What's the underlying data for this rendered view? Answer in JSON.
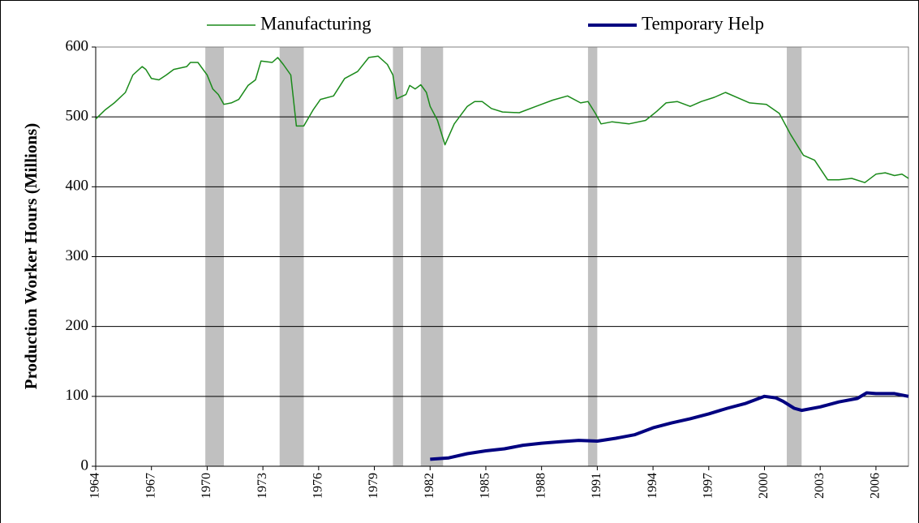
{
  "chart_data": {
    "type": "line",
    "y_label": "Production Worker Hours (Millions)",
    "xlim": [
      1964,
      2007.75
    ],
    "xticks": [
      1964,
      1967,
      1970,
      1973,
      1976,
      1979,
      1982,
      1985,
      1988,
      1991,
      1994,
      1997,
      2000,
      2003,
      2006
    ],
    "ylim": [
      0,
      600
    ],
    "yticks": [
      0,
      100,
      200,
      300,
      400,
      500,
      600
    ],
    "grid": true,
    "recessions": [
      [
        1969.9,
        1970.9
      ],
      [
        1973.9,
        1975.2
      ],
      [
        1980.0,
        1980.55
      ],
      [
        1981.5,
        1982.7
      ],
      [
        1990.5,
        1991.0
      ],
      [
        2001.2,
        2002.0
      ]
    ],
    "recession_color": "#c0c0c0",
    "series": [
      {
        "name": "Manufacturing",
        "color": "#1a8a1a",
        "width": 1.5,
        "x": [
          1964.0,
          1964.5,
          1965.0,
          1965.6,
          1966.0,
          1966.5,
          1966.7,
          1967.0,
          1967.4,
          1967.8,
          1968.2,
          1968.9,
          1969.1,
          1969.5,
          1970.0,
          1970.3,
          1970.6,
          1970.9,
          1971.3,
          1971.7,
          1972.2,
          1972.6,
          1972.9,
          1973.5,
          1973.8,
          1974.1,
          1974.5,
          1974.8,
          1975.2,
          1975.7,
          1976.1,
          1976.8,
          1977.4,
          1978.1,
          1978.7,
          1979.2,
          1979.7,
          1980.0,
          1980.2,
          1980.7,
          1980.9,
          1981.2,
          1981.5,
          1981.8,
          1982.0,
          1982.4,
          1982.8,
          1983.3,
          1984.0,
          1984.4,
          1984.8,
          1985.3,
          1985.9,
          1986.8,
          1987.7,
          1988.6,
          1989.4,
          1990.1,
          1990.5,
          1990.9,
          1991.2,
          1991.8,
          1992.7,
          1993.6,
          1994.2,
          1994.7,
          1995.3,
          1996.0,
          1996.6,
          1997.3,
          1997.9,
          1998.6,
          1999.2,
          2000.1,
          2000.8,
          2001.4,
          2002.1,
          2002.7,
          2003.4,
          2004.0,
          2004.7,
          2005.4,
          2006.0,
          2006.5,
          2007.0,
          2007.4,
          2007.75
        ],
        "values": [
          497,
          510,
          520,
          535,
          560,
          572,
          568,
          555,
          553,
          560,
          568,
          572,
          578,
          578,
          560,
          540,
          532,
          518,
          520,
          525,
          545,
          553,
          580,
          578,
          585,
          575,
          560,
          487,
          487,
          510,
          525,
          530,
          555,
          565,
          585,
          587,
          575,
          560,
          526,
          532,
          545,
          540,
          546,
          535,
          515,
          495,
          460,
          490,
          515,
          522,
          522,
          512,
          507,
          506,
          515,
          524,
          530,
          520,
          522,
          505,
          490,
          493,
          490,
          495,
          508,
          520,
          522,
          515,
          522,
          528,
          535,
          527,
          520,
          518,
          505,
          475,
          445,
          438,
          410,
          410,
          412,
          406,
          418,
          420,
          416,
          418,
          412
        ]
      },
      {
        "name": "Temporary Help",
        "color": "#000080",
        "width": 4,
        "x": [
          1982.0,
          1983.0,
          1984.0,
          1985.0,
          1986.0,
          1987.0,
          1988.0,
          1989.0,
          1990.0,
          1991.0,
          1992.0,
          1993.0,
          1994.0,
          1995.0,
          1996.0,
          1997.0,
          1998.0,
          1999.0,
          2000.0,
          2000.6,
          2001.0,
          2001.6,
          2002.0,
          2003.0,
          2004.0,
          2005.0,
          2005.5,
          2006.0,
          2007.0,
          2007.75
        ],
        "values": [
          10,
          12,
          18,
          22,
          25,
          30,
          33,
          35,
          37,
          36,
          40,
          45,
          55,
          62,
          68,
          75,
          83,
          90,
          100,
          98,
          93,
          83,
          80,
          85,
          92,
          97,
          105,
          104,
          104,
          100
        ]
      }
    ]
  }
}
